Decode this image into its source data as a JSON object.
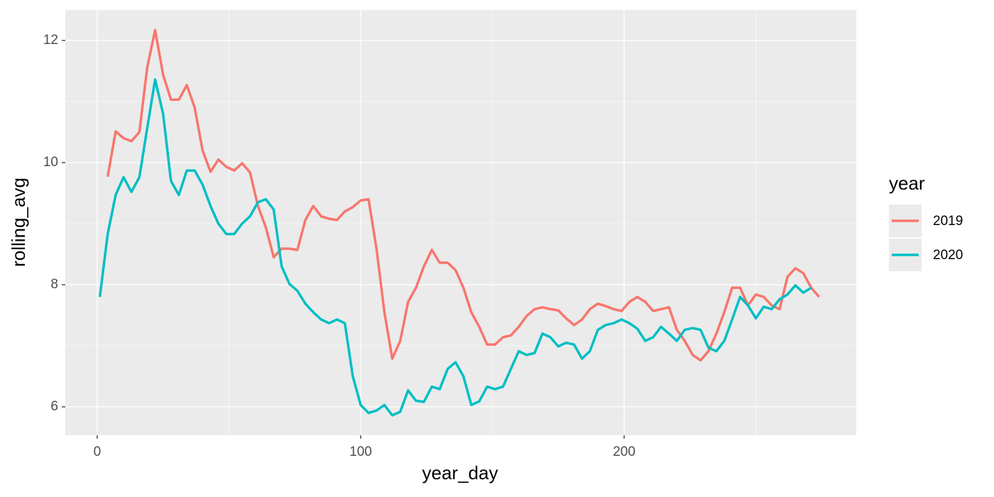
{
  "chart_data": {
    "type": "line",
    "x_label": "year_day",
    "y_label": "rolling_avg",
    "legend_title": "year",
    "legend_position": "right",
    "x": [
      1,
      4,
      7,
      10,
      13,
      16,
      19,
      22,
      25,
      28,
      31,
      34,
      37,
      40,
      43,
      46,
      49,
      52,
      55,
      58,
      61,
      64,
      67,
      70,
      73,
      76,
      79,
      82,
      85,
      88,
      91,
      94,
      97,
      100,
      103,
      106,
      109,
      112,
      115,
      118,
      121,
      124,
      127,
      130,
      133,
      136,
      139,
      142,
      145,
      148,
      151,
      154,
      157,
      160,
      163,
      166,
      169,
      172,
      175,
      178,
      181,
      184,
      187,
      190,
      193,
      196,
      199,
      202,
      205,
      208,
      211,
      214,
      217,
      220,
      223,
      226,
      229,
      232,
      235,
      238,
      241,
      244,
      247,
      250,
      253,
      256,
      259,
      262,
      265,
      268,
      271,
      274
    ],
    "series": [
      {
        "name": "2019",
        "color": "#f8766d",
        "values": [
          null,
          9.77,
          10.51,
          10.4,
          10.35,
          10.5,
          11.56,
          12.17,
          11.44,
          11.03,
          11.03,
          11.27,
          10.9,
          10.2,
          9.85,
          10.05,
          9.93,
          9.87,
          9.99,
          9.84,
          9.29,
          8.94,
          8.45,
          8.59,
          8.59,
          8.57,
          9.06,
          9.29,
          9.12,
          9.08,
          9.06,
          9.2,
          9.27,
          9.38,
          9.4,
          8.59,
          7.55,
          6.79,
          7.08,
          7.72,
          7.95,
          8.3,
          8.57,
          8.36,
          8.36,
          8.24,
          7.95,
          7.55,
          7.31,
          7.02,
          7.02,
          7.14,
          7.17,
          7.31,
          7.49,
          7.6,
          7.63,
          7.6,
          7.58,
          7.45,
          7.34,
          7.43,
          7.6,
          7.69,
          7.65,
          7.6,
          7.57,
          7.72,
          7.8,
          7.72,
          7.57,
          7.6,
          7.63,
          7.26,
          7.08,
          6.85,
          6.76,
          6.91,
          7.2,
          7.55,
          7.95,
          7.95,
          7.66,
          7.84,
          7.8,
          7.66,
          7.6,
          8.13,
          8.27,
          8.19,
          7.95,
          7.8
        ]
      },
      {
        "name": "2020",
        "color": "#00bfc4",
        "values": [
          7.8,
          8.83,
          9.47,
          9.76,
          9.52,
          9.76,
          10.57,
          11.36,
          10.8,
          9.7,
          9.47,
          9.87,
          9.87,
          9.64,
          9.29,
          9.0,
          8.83,
          8.83,
          9.0,
          9.12,
          9.35,
          9.4,
          9.23,
          8.3,
          8.01,
          7.9,
          7.69,
          7.55,
          7.43,
          7.37,
          7.43,
          7.37,
          6.5,
          6.03,
          5.9,
          5.94,
          6.03,
          5.86,
          5.92,
          6.27,
          6.1,
          6.08,
          6.33,
          6.29,
          6.62,
          6.73,
          6.5,
          6.03,
          6.09,
          6.33,
          6.29,
          6.33,
          6.62,
          6.91,
          6.85,
          6.88,
          7.2,
          7.14,
          6.99,
          7.05,
          7.02,
          6.79,
          6.91,
          7.26,
          7.34,
          7.37,
          7.43,
          7.37,
          7.28,
          7.08,
          7.14,
          7.31,
          7.2,
          7.08,
          7.26,
          7.29,
          7.26,
          6.97,
          6.91,
          7.08,
          7.43,
          7.8,
          7.66,
          7.45,
          7.64,
          7.6,
          7.76,
          7.84,
          7.99,
          7.87,
          7.95,
          null
        ]
      }
    ],
    "xlim": [
      -12.1,
      288.1
    ],
    "ylim": [
      5.535,
      12.5
    ],
    "xticks": [
      0,
      100,
      200
    ],
    "yticks": [
      6,
      8,
      10,
      12
    ],
    "xminor": [
      50,
      150,
      250
    ],
    "yminor": [
      7,
      9,
      11
    ],
    "grid": true
  }
}
